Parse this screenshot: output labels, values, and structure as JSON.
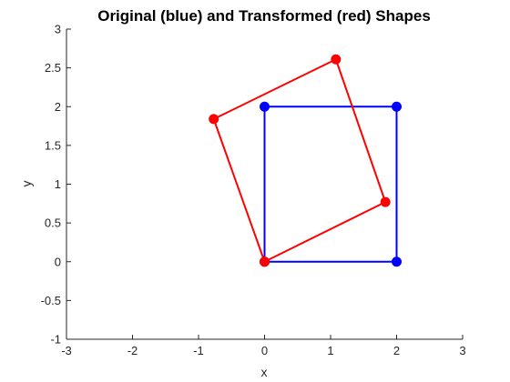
{
  "chart_data": {
    "type": "line",
    "title": "Original (blue) and Transformed (red) Shapes",
    "xlabel": "x",
    "ylabel": "y",
    "xlim": [
      -3,
      3
    ],
    "ylim": [
      -1,
      3
    ],
    "xticks": [
      -3,
      -2,
      -1,
      0,
      1,
      2,
      3
    ],
    "xtick_labels": [
      "-3",
      "-2",
      "-1",
      "0",
      "1",
      "2",
      "3"
    ],
    "yticks": [
      -1,
      -0.5,
      0,
      0.5,
      1,
      1.5,
      2,
      2.5,
      3
    ],
    "ytick_labels": [
      "-1",
      "-0.5",
      "0",
      "0.5",
      "1",
      "1.5",
      "2",
      "2.5",
      "3"
    ],
    "grid": false,
    "series": [
      {
        "color": "#0000ff",
        "closed": true,
        "x": [
          0,
          2,
          2,
          0,
          0
        ],
        "y": [
          0,
          0,
          2,
          2,
          0
        ]
      },
      {
        "color": "#ff0000",
        "closed": true,
        "x": [
          0,
          1.83,
          1.08,
          -0.77,
          0
        ],
        "y": [
          0,
          0.77,
          2.61,
          1.84,
          0
        ]
      }
    ]
  }
}
